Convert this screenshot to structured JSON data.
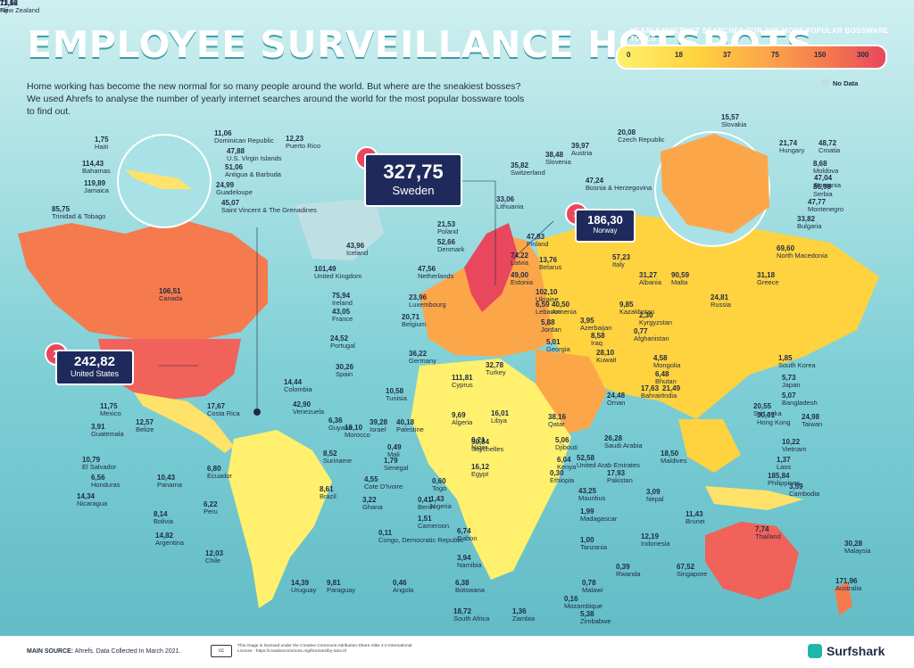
{
  "title": "EMPLOYEE SURVEILLANCE HOTSPOTS",
  "intro": "Home working has become the new normal for so many people around the world. But where are the sneakiest bosses? We used Ahrefs to analyse the number of yearly internet searches around the world for the most popular bossware tools to find out.",
  "legend": {
    "title": "YEARLY INTERNET SEARCHES FOR THE MOST POPULAR BOSSWARE TOOLS",
    "ticks": [
      "0",
      "18",
      "37",
      "75",
      "150",
      "300"
    ],
    "no_data": "No Data"
  },
  "colors": {
    "ocean": "#7fd0d6",
    "land_low": "#fff06e",
    "land_mid": "#fca64a",
    "land_high": "#e9475d",
    "navy": "#1f2a5c",
    "nodata": "#bfe0e3"
  },
  "rankings": [
    {
      "rank": "1",
      "value": "327,75",
      "country": "Sweden"
    },
    {
      "rank": "2",
      "value": "242,82",
      "country": "United States"
    },
    {
      "rank": "3",
      "value": "186,30",
      "country": "Norway"
    }
  ],
  "countries": [
    {
      "v": "11,06",
      "n": "Dominican Republic"
    },
    {
      "v": "1,75",
      "n": "Haiti"
    },
    {
      "v": "12,23",
      "n": "Puerto Rico"
    },
    {
      "v": "47,88",
      "n": "U.S. Virgin Islands"
    },
    {
      "v": "114,43",
      "n": "Bahamas"
    },
    {
      "v": "51,06",
      "n": "Antigua & Barbuda"
    },
    {
      "v": "119,89",
      "n": "Jamaica"
    },
    {
      "v": "24,99",
      "n": "Guadeloupe"
    },
    {
      "v": "85,75",
      "n": "Trinidad & Tobago"
    },
    {
      "v": "45,07",
      "n": "Saint Vincent & The Grenadines"
    },
    {
      "v": "106,51",
      "n": "Canada"
    },
    {
      "v": "43,96",
      "n": "Iceland"
    },
    {
      "v": "101,49",
      "n": "United Kingdom"
    },
    {
      "v": "75,94",
      "n": "Ireland"
    },
    {
      "v": "43,05",
      "n": "France"
    },
    {
      "v": "24,52",
      "n": "Portugal"
    },
    {
      "v": "30,26",
      "n": "Spain"
    },
    {
      "v": "47,56",
      "n": "Netherlands"
    },
    {
      "v": "23,96",
      "n": "Luxembourg"
    },
    {
      "v": "20,71",
      "n": "Belgium"
    },
    {
      "v": "36,22",
      "n": "Germany"
    },
    {
      "v": "52,66",
      "n": "Denmark"
    },
    {
      "v": "21,53",
      "n": "Poland"
    },
    {
      "v": "33,06",
      "n": "Lithuania"
    },
    {
      "v": "47,83",
      "n": "Finland"
    },
    {
      "v": "74,22",
      "n": "Latvia"
    },
    {
      "v": "13,76",
      "n": "Belarus"
    },
    {
      "v": "49,00",
      "n": "Estonia"
    },
    {
      "v": "102,10",
      "n": "Ukraine"
    },
    {
      "v": "20,08",
      "n": "Czech Republic"
    },
    {
      "v": "39,97",
      "n": "Austria"
    },
    {
      "v": "38,48",
      "n": "Slovenia"
    },
    {
      "v": "35,82",
      "n": "Switzerland"
    },
    {
      "v": "47,24",
      "n": "Bosnia & Herzegovina"
    },
    {
      "v": "15,57",
      "n": "Slovakia"
    },
    {
      "v": "21,74",
      "n": "Hungary"
    },
    {
      "v": "48,72",
      "n": "Croatia"
    },
    {
      "v": "8,68",
      "n": "Moldova"
    },
    {
      "v": "47,04",
      "n": "Romania"
    },
    {
      "v": "86,98",
      "n": "Serbia"
    },
    {
      "v": "47,77",
      "n": "Montenegro"
    },
    {
      "v": "33,82",
      "n": "Bulgaria"
    },
    {
      "v": "69,60",
      "n": "North Macedonia"
    },
    {
      "v": "57,23",
      "n": "Italy"
    },
    {
      "v": "31,27",
      "n": "Albania"
    },
    {
      "v": "90,59",
      "n": "Malta"
    },
    {
      "v": "31,18",
      "n": "Greece"
    },
    {
      "v": "24,81",
      "n": "Russia"
    },
    {
      "v": "6,59",
      "n": "Lebanon"
    },
    {
      "v": "40,50",
      "n": "Armenia"
    },
    {
      "v": "9,85",
      "n": "Kazakhstan"
    },
    {
      "v": "5,88",
      "n": "Jordan"
    },
    {
      "v": "3,95",
      "n": "Azerbaijan"
    },
    {
      "v": "2,30",
      "n": "Kyrgyzstan"
    },
    {
      "v": "8,58",
      "n": "Iraq"
    },
    {
      "v": "0,77",
      "n": "Afghanistan"
    },
    {
      "v": "5,01",
      "n": "Georgia"
    },
    {
      "v": "28,10",
      "n": "Kuwait"
    },
    {
      "v": "4,58",
      "n": "Mongolia"
    },
    {
      "v": "32,78",
      "n": "Turkey"
    },
    {
      "v": "111,81",
      "n": "Cyprus"
    },
    {
      "v": "1,85",
      "n": "South Korea"
    },
    {
      "v": "6,48",
      "n": "Bhutan"
    },
    {
      "v": "5,73",
      "n": "Japan"
    },
    {
      "v": "21,49",
      "n": "India"
    },
    {
      "v": "14,44",
      "n": "Colombia"
    },
    {
      "v": "17,67",
      "n": "Costa Rica"
    },
    {
      "v": "42,90",
      "n": "Venezuela"
    },
    {
      "v": "6,36",
      "n": "Guyana"
    },
    {
      "v": "11,75",
      "n": "Mexico"
    },
    {
      "v": "12,57",
      "n": "Belize"
    },
    {
      "v": "3,91",
      "n": "Guatemala"
    },
    {
      "v": "10,79",
      "n": "El Salvador"
    },
    {
      "v": "6,56",
      "n": "Honduras"
    },
    {
      "v": "14,34",
      "n": "Nicaragua"
    },
    {
      "v": "10,43",
      "n": "Panama"
    },
    {
      "v": "6,80",
      "n": "Ecuador"
    },
    {
      "v": "6,22",
      "n": "Peru"
    },
    {
      "v": "8,14",
      "n": "Bolivia"
    },
    {
      "v": "14,82",
      "n": "Argentina"
    },
    {
      "v": "12,03",
      "n": "Chile"
    },
    {
      "v": "14,39",
      "n": "Uruguay"
    },
    {
      "v": "9,81",
      "n": "Paraguay"
    },
    {
      "v": "8,52",
      "n": "Suriname"
    },
    {
      "v": "8,61",
      "n": "Brazil"
    },
    {
      "v": "10,58",
      "n": "Tunisia"
    },
    {
      "v": "39,28",
      "n": "Israel"
    },
    {
      "v": "40,18",
      "n": "Palestine"
    },
    {
      "v": "19,10",
      "n": "Morocco"
    },
    {
      "v": "9,69",
      "n": "Algeria"
    },
    {
      "v": "16,01",
      "n": "Libya"
    },
    {
      "v": "0,49",
      "n": "Mali"
    },
    {
      "v": "0,21",
      "n": "Niger"
    },
    {
      "v": "1,79",
      "n": "Senegal"
    },
    {
      "v": "4,55",
      "n": "Cote D'Ivoire"
    },
    {
      "v": "3,22",
      "n": "Ghana"
    },
    {
      "v": "0,60",
      "n": "Togo"
    },
    {
      "v": "0,41",
      "n": "Benin"
    },
    {
      "v": "1,43",
      "n": "Nigeria"
    },
    {
      "v": "1,51",
      "n": "Cameroon"
    },
    {
      "v": "6,74",
      "n": "Gabon"
    },
    {
      "v": "0,11",
      "n": "Congo, Democratic Republic"
    },
    {
      "v": "3,94",
      "n": "Namibia"
    },
    {
      "v": "0,46",
      "n": "Angola"
    },
    {
      "v": "6,38",
      "n": "Botswana"
    },
    {
      "v": "18,72",
      "n": "South Africa"
    },
    {
      "v": "1,36",
      "n": "Zambia"
    },
    {
      "v": "0,16",
      "n": "Mozambique"
    },
    {
      "v": "5,38",
      "n": "Zimbabwe"
    },
    {
      "v": "0,78",
      "n": "Malawi"
    },
    {
      "v": "0,39",
      "n": "Rwanda"
    },
    {
      "v": "1,00",
      "n": "Tanzania"
    },
    {
      "v": "1,99",
      "n": "Madagascar"
    },
    {
      "v": "43,25",
      "n": "Mauritius"
    },
    {
      "v": "50,84",
      "n": "Seychelles"
    },
    {
      "v": "16,12",
      "n": "Egypt"
    },
    {
      "v": "6,04",
      "n": "Kenya"
    },
    {
      "v": "0,30",
      "n": "Ethiopia"
    },
    {
      "v": "5,06",
      "n": "Djibouti"
    },
    {
      "v": "38,16",
      "n": "Qatar"
    },
    {
      "v": "26,28",
      "n": "Saudi Arabia"
    },
    {
      "v": "52,58",
      "n": "United Arab Emirates"
    },
    {
      "v": "24,48",
      "n": "Oman"
    },
    {
      "v": "17,63",
      "n": "Bahrain"
    },
    {
      "v": "17,93",
      "n": "Pakistan"
    },
    {
      "v": "3,09",
      "n": "Nepal"
    },
    {
      "v": "18,50",
      "n": "Maldives"
    },
    {
      "v": "20,55",
      "n": "Sri Lanka"
    },
    {
      "v": "5,07",
      "n": "Bangladesh"
    },
    {
      "v": "30,01",
      "n": "Hong Kong"
    },
    {
      "v": "24,98",
      "n": "Taiwan"
    },
    {
      "v": "10,22",
      "n": "Vietnam"
    },
    {
      "v": "1,37",
      "n": "Laos"
    },
    {
      "v": "185,84",
      "n": "Philippines"
    },
    {
      "v": "3,59",
      "n": "Cambodia"
    },
    {
      "v": "11,43",
      "n": "Brunei"
    },
    {
      "v": "12,19",
      "n": "Indonesia"
    },
    {
      "v": "67,52",
      "n": "Singapore"
    },
    {
      "v": "7,74",
      "n": "Thailand"
    },
    {
      "v": "30,28",
      "n": "Malaysia"
    },
    {
      "v": "171,96",
      "n": "Australia"
    },
    {
      "v": "11,16",
      "n": "Fiji"
    },
    {
      "v": "73,62",
      "n": "New Zealand"
    }
  ],
  "footer": {
    "source_label": "MAIN SOURCE:",
    "source": "Ahrefs. Data Collected In March 2021.",
    "cc": "cc",
    "license": "This image is licensed under the Creative Commons Attribution-Share Alike 4.0 International License - https://creativecommons.org/licenses/by-sa/4.0/",
    "brand": "Surfshark"
  }
}
